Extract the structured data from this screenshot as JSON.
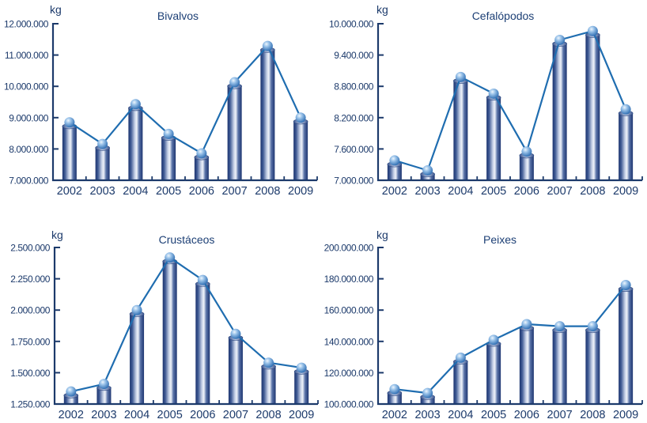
{
  "chart_data": [
    {
      "type": "bar",
      "title": "Bivalvos",
      "ylabel": "kg",
      "xlabel": "",
      "categories": [
        "2002",
        "2003",
        "2004",
        "2005",
        "2006",
        "2007",
        "2008",
        "2009"
      ],
      "values": [
        8850000,
        8160000,
        9430000,
        8480000,
        7860000,
        10130000,
        11290000,
        9000000
      ],
      "yticks": [
        7000000,
        8000000,
        9000000,
        10000000,
        11000000,
        12000000
      ],
      "ytick_labels": [
        "7.000.000",
        "8.000.000",
        "9.000.000",
        "10.000.000",
        "11.000.000",
        "12.000.000"
      ],
      "ylim": [
        7000000,
        12000000
      ],
      "overlay": "line connecting bar tops",
      "grid": false,
      "legend": "none"
    },
    {
      "type": "bar",
      "title": "Cefalópodos",
      "ylabel": "kg",
      "xlabel": "",
      "categories": [
        "2002",
        "2003",
        "2004",
        "2005",
        "2006",
        "2007",
        "2008",
        "2009"
      ],
      "values": [
        7380000,
        7190000,
        8980000,
        8660000,
        7550000,
        9690000,
        9860000,
        8360000
      ],
      "yticks": [
        7000000,
        7600000,
        8200000,
        8800000,
        9400000,
        10000000
      ],
      "ytick_labels": [
        "7.000.000",
        "7.600.000",
        "8.200.000",
        "8.800.000",
        "9.400.000",
        "10.000.000"
      ],
      "ylim": [
        7000000,
        10000000
      ],
      "overlay": "line connecting bar tops",
      "grid": false,
      "legend": "none"
    },
    {
      "type": "bar",
      "title": "Crustáceos",
      "ylabel": "kg",
      "xlabel": "",
      "categories": [
        "2002",
        "2003",
        "2004",
        "2005",
        "2006",
        "2007",
        "2008",
        "2009"
      ],
      "values": [
        1350000,
        1410000,
        2000000,
        2420000,
        2240000,
        1810000,
        1580000,
        1540000
      ],
      "yticks": [
        1250000,
        1500000,
        1750000,
        2000000,
        2250000,
        2500000
      ],
      "ytick_labels": [
        "1.250.000",
        "1.500.000",
        "1.750.000",
        "2.000.000",
        "2.250.000",
        "2.500.000"
      ],
      "ylim": [
        1250000,
        2500000
      ],
      "overlay": "line connecting bar tops",
      "grid": false,
      "legend": "none"
    },
    {
      "type": "bar",
      "title": "Peixes",
      "ylabel": "kg",
      "xlabel": "",
      "categories": [
        "2002",
        "2003",
        "2004",
        "2005",
        "2006",
        "2007",
        "2008",
        "2009"
      ],
      "values": [
        109500000,
        107000000,
        129600000,
        141000000,
        151000000,
        149700000,
        149700000,
        176000000
      ],
      "yticks": [
        100000000,
        120000000,
        140000000,
        160000000,
        180000000,
        200000000
      ],
      "ytick_labels": [
        "100.000.000",
        "120.000.000",
        "140.000.000",
        "160.000.000",
        "180.000.000",
        "200.000.000"
      ],
      "ylim": [
        100000000,
        200000000
      ],
      "overlay": "line connecting bar tops",
      "grid": false,
      "legend": "none"
    }
  ],
  "colors": {
    "axis": "#1c3a6b",
    "text": "#1c3a6b",
    "line": "#1f6db0",
    "bar_dark": "#1d3570",
    "bar_light": "#e6ebf5",
    "sphere_light": "#dcebf8",
    "sphere_dark": "#3474b8"
  }
}
